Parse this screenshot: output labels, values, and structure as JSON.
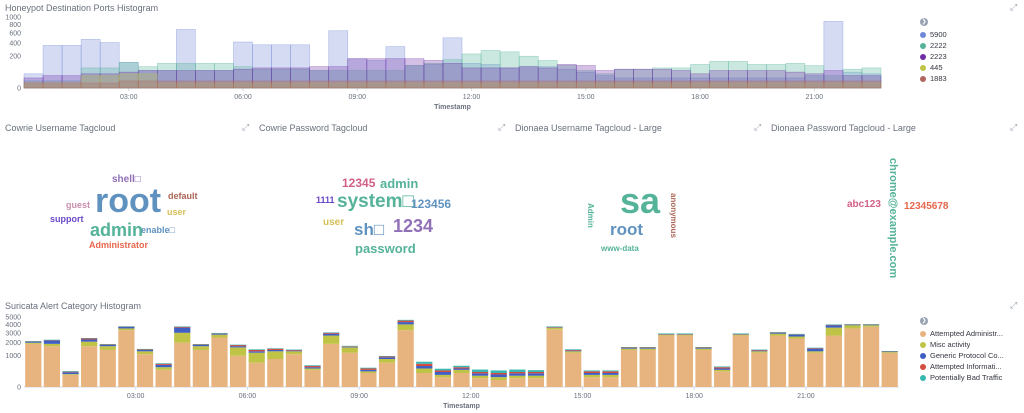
{
  "honeypot": {
    "title": "Honeypot Destination Ports Histogram",
    "y_ticks": [
      "1000",
      "800",
      "600",
      "400",
      "200",
      "0"
    ],
    "x_ticks": [
      "03:00",
      "06:00",
      "09:00",
      "12:00",
      "15:00",
      "18:00",
      "21:00"
    ],
    "x_label": "Timestamp",
    "legend": [
      {
        "label": "5900",
        "color": "#6f87d8"
      },
      {
        "label": "2222",
        "color": "#54b399"
      },
      {
        "label": "2223",
        "color": "#6f2da8"
      },
      {
        "label": "445",
        "color": "#bfc447"
      },
      {
        "label": "1883",
        "color": "#b0665f"
      }
    ]
  },
  "chart_data": [
    {
      "type": "area",
      "title": "Honeypot Destination Ports Histogram",
      "xlabel": "Timestamp",
      "ylim": [
        0,
        1000
      ],
      "y_scale": "sqrt",
      "x": [
        "00:30",
        "01:00",
        "01:30",
        "02:00",
        "02:30",
        "03:00",
        "03:30",
        "04:00",
        "04:30",
        "05:00",
        "05:30",
        "06:00",
        "06:30",
        "07:00",
        "07:30",
        "08:00",
        "08:30",
        "09:00",
        "09:30",
        "10:00",
        "10:30",
        "11:00",
        "11:30",
        "12:00",
        "12:30",
        "13:00",
        "13:30",
        "14:00",
        "14:30",
        "15:00",
        "15:30",
        "16:00",
        "16:30",
        "17:00",
        "17:30",
        "18:00",
        "18:30",
        "19:00",
        "19:30",
        "20:00",
        "20:30",
        "21:00",
        "21:30",
        "22:00",
        "22:30"
      ],
      "series": [
        {
          "name": "5900",
          "values": [
            40,
            360,
            360,
            470,
            410,
            130,
            60,
            60,
            680,
            60,
            60,
            420,
            370,
            370,
            370,
            60,
            650,
            170,
            150,
            340,
            100,
            110,
            500,
            120,
            110,
            80,
            90,
            90,
            70,
            50,
            30,
            20,
            20,
            20,
            20,
            20,
            20,
            20,
            20,
            20,
            20,
            30,
            880,
            50,
            40
          ]
        },
        {
          "name": "2222",
          "values": [
            10,
            10,
            10,
            80,
            80,
            130,
            90,
            120,
            120,
            120,
            120,
            90,
            70,
            70,
            70,
            60,
            60,
            60,
            60,
            60,
            100,
            120,
            160,
            230,
            280,
            260,
            200,
            150,
            100,
            60,
            40,
            70,
            70,
            80,
            80,
            110,
            140,
            140,
            110,
            110,
            120,
            100,
            30,
            70,
            80
          ]
        },
        {
          "name": "2223",
          "values": [
            20,
            30,
            30,
            40,
            40,
            50,
            60,
            60,
            60,
            60,
            60,
            70,
            80,
            80,
            80,
            90,
            90,
            170,
            170,
            170,
            170,
            150,
            120,
            80,
            80,
            80,
            90,
            80,
            110,
            100,
            60,
            70,
            70,
            70,
            60,
            40,
            60,
            60,
            60,
            60,
            50,
            40,
            60,
            30,
            30
          ]
        },
        {
          "name": "445",
          "values": [
            5,
            5,
            5,
            30,
            30,
            40,
            40,
            5,
            5,
            5,
            5,
            5,
            5,
            5,
            5,
            5,
            5,
            5,
            5,
            5,
            5,
            5,
            5,
            5,
            5,
            5,
            5,
            5,
            5,
            5,
            5,
            5,
            5,
            5,
            5,
            5,
            5,
            5,
            5,
            5,
            5,
            5,
            5,
            5,
            5
          ]
        },
        {
          "name": "1883",
          "values": [
            5,
            5,
            5,
            5,
            5,
            10,
            10,
            10,
            10,
            10,
            10,
            10,
            10,
            10,
            10,
            10,
            10,
            10,
            10,
            10,
            10,
            10,
            10,
            10,
            10,
            10,
            10,
            10,
            10,
            10,
            10,
            10,
            10,
            10,
            10,
            10,
            10,
            10,
            10,
            10,
            10,
            10,
            10,
            10,
            10
          ]
        }
      ]
    },
    {
      "type": "bar",
      "title": "Suricata Alert Category Histogram",
      "xlabel": "Timestamp",
      "ylim": [
        0,
        5000
      ],
      "y_scale": "sqrt",
      "stacked": true,
      "categories": [
        "00:00",
        "00:30",
        "01:00",
        "01:30",
        "02:00",
        "02:30",
        "03:00",
        "03:30",
        "04:00",
        "04:30",
        "05:00",
        "05:30",
        "06:00",
        "06:30",
        "07:00",
        "07:30",
        "08:00",
        "08:30",
        "09:00",
        "09:30",
        "10:00",
        "10:30",
        "11:00",
        "11:30",
        "12:00",
        "12:30",
        "13:00",
        "13:30",
        "14:00",
        "14:30",
        "15:00",
        "15:30",
        "16:00",
        "16:30",
        "17:00",
        "17:30",
        "18:00",
        "18:30",
        "19:00",
        "19:30",
        "20:00",
        "20:30",
        "21:00",
        "21:30",
        "22:00",
        "22:30",
        "23:00"
      ],
      "series": [
        {
          "name": "Attempted Administr...",
          "values": [
            1900,
            1700,
            150,
            1700,
            1400,
            3300,
            1100,
            300,
            2000,
            1400,
            2500,
            1000,
            600,
            800,
            1100,
            300,
            1900,
            1200,
            200,
            600,
            3300,
            200,
            100,
            200,
            80,
            50,
            80,
            80,
            3400,
            1200,
            100,
            100,
            1400,
            1400,
            2700,
            2700,
            1400,
            250,
            2700,
            1200,
            2700,
            2400,
            1200,
            2700,
            3500,
            3700,
            1200
          ]
        },
        {
          "name": "Misc activity",
          "values": [
            100,
            200,
            20,
            400,
            300,
            200,
            200,
            100,
            1000,
            300,
            300,
            600,
            600,
            500,
            200,
            50,
            800,
            400,
            50,
            200,
            700,
            150,
            50,
            100,
            50,
            50,
            50,
            50,
            200,
            100,
            50,
            50,
            100,
            100,
            100,
            100,
            100,
            50,
            100,
            100,
            200,
            200,
            100,
            900,
            400,
            200,
            50
          ]
        },
        {
          "name": "Generic Protocol Co...",
          "values": [
            100,
            300,
            50,
            200,
            100,
            200,
            100,
            100,
            600,
            100,
            100,
            100,
            100,
            100,
            50,
            50,
            200,
            50,
            50,
            100,
            300,
            100,
            80,
            50,
            60,
            60,
            60,
            60,
            50,
            50,
            50,
            50,
            50,
            50,
            50,
            50,
            50,
            50,
            50,
            50,
            100,
            200,
            200,
            300,
            50,
            50,
            30
          ]
        },
        {
          "name": "Attempted Informati...",
          "values": [
            30,
            50,
            20,
            100,
            50,
            30,
            50,
            50,
            100,
            50,
            50,
            100,
            100,
            100,
            50,
            50,
            100,
            50,
            50,
            50,
            200,
            100,
            50,
            50,
            40,
            40,
            40,
            40,
            50,
            50,
            50,
            50,
            50,
            50,
            50,
            50,
            50,
            50,
            50,
            50,
            50,
            50,
            50,
            50,
            50,
            50,
            20
          ]
        },
        {
          "name": "Potentially Bad Traffic",
          "values": [
            20,
            30,
            20,
            50,
            30,
            30,
            30,
            30,
            50,
            30,
            30,
            30,
            50,
            30,
            30,
            30,
            50,
            30,
            30,
            30,
            100,
            100,
            60,
            60,
            80,
            80,
            80,
            60,
            50,
            50,
            30,
            30,
            30,
            30,
            30,
            30,
            30,
            30,
            30,
            30,
            30,
            30,
            30,
            50,
            30,
            30,
            20
          ]
        }
      ]
    }
  ],
  "tagclouds": [
    {
      "title": "Cowrie Username Tagcloud",
      "words": [
        {
          "text": "root",
          "color": "#6092c0"
        },
        {
          "text": "admin",
          "color": "#54b399"
        },
        {
          "text": "shell□",
          "color": "#9170b8"
        },
        {
          "text": "guest",
          "color": "#ca8eae"
        },
        {
          "text": "default",
          "color": "#aa6556"
        },
        {
          "text": "user",
          "color": "#d6bf57"
        },
        {
          "text": "support",
          "color": "#6a48c8"
        },
        {
          "text": "enable□",
          "color": "#6092c0"
        },
        {
          "text": "Administrator",
          "color": "#e7664c"
        }
      ]
    },
    {
      "title": "Cowrie Password Tagcloud",
      "words": [
        {
          "text": "12345",
          "color": "#d36086"
        },
        {
          "text": "admin",
          "color": "#54b399"
        },
        {
          "text": "1111",
          "color": "#6a48c8"
        },
        {
          "text": "system□",
          "color": "#54b399"
        },
        {
          "text": "123456",
          "color": "#6092c0"
        },
        {
          "text": "user",
          "color": "#d6bf57"
        },
        {
          "text": "sh□",
          "color": "#6092c0"
        },
        {
          "text": "1234",
          "color": "#9170b8"
        },
        {
          "text": "password",
          "color": "#54b399"
        }
      ]
    },
    {
      "title": "Dionaea Username Tagcloud - Large",
      "words": [
        {
          "text": "sa",
          "color": "#54b399"
        },
        {
          "text": "root",
          "color": "#6092c0"
        },
        {
          "text": "Admin",
          "color": "#54b399"
        },
        {
          "text": "anonymous",
          "color": "#aa6556"
        },
        {
          "text": "www-data",
          "color": "#54b399"
        }
      ]
    },
    {
      "title": "Dionaea Password Tagcloud - Large",
      "words": [
        {
          "text": "chrome@example.com",
          "color": "#54b399"
        },
        {
          "text": "abc123",
          "color": "#d36086"
        },
        {
          "text": "12345678",
          "color": "#e7664c"
        }
      ]
    }
  ],
  "suricata": {
    "title": "Suricata Alert Category Histogram",
    "y_ticks": [
      "5000",
      "4000",
      "3000",
      "2000",
      "1000",
      "0"
    ],
    "x_ticks": [
      "03:00",
      "06:00",
      "09:00",
      "12:00",
      "15:00",
      "18:00",
      "21:00"
    ],
    "x_label": "Timestamp",
    "legend": [
      {
        "label": "Attempted Administr...",
        "color": "#e7b47f"
      },
      {
        "label": "Misc activity",
        "color": "#bfc447"
      },
      {
        "label": "Generic Protocol Co...",
        "color": "#3f5fc4"
      },
      {
        "label": "Attempted Informati...",
        "color": "#d44b40"
      },
      {
        "label": "Potentially Bad Traffic",
        "color": "#36b7b0"
      }
    ]
  },
  "ui": {
    "expand_icon": "⤢",
    "legend_toggle": "❯"
  }
}
